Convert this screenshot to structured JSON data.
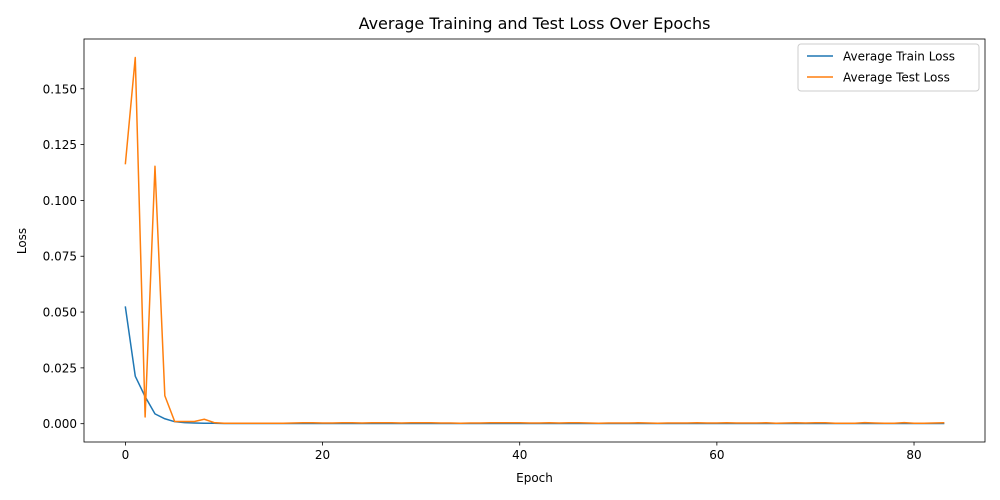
{
  "chart_data": {
    "type": "line",
    "title": "Average Training and Test Loss Over Epochs",
    "xlabel": "Epoch",
    "ylabel": "Loss",
    "xlim": [
      -4.2,
      87.2
    ],
    "ylim": [
      -0.0082,
      0.1723
    ],
    "xticks": [
      0,
      20,
      40,
      60,
      80
    ],
    "yticks": [
      0.0,
      0.025,
      0.05,
      0.075,
      0.1,
      0.125,
      0.15
    ],
    "ytick_labels": [
      "0.000",
      "0.025",
      "0.050",
      "0.075",
      "0.100",
      "0.125",
      "0.150"
    ],
    "grid": false,
    "legend_position": "top-right",
    "series": [
      {
        "name": "Average Train Loss",
        "color": "#1f77b4",
        "x": [
          0,
          1,
          2,
          3,
          4,
          5,
          6,
          7,
          8,
          9,
          10,
          11,
          12,
          13,
          14,
          15,
          16,
          17,
          18,
          19,
          20,
          21,
          22,
          23,
          24,
          25,
          26,
          27,
          28,
          29,
          30,
          31,
          32,
          33,
          34,
          35,
          36,
          37,
          38,
          39,
          40,
          41,
          42,
          43,
          44,
          45,
          46,
          47,
          48,
          49,
          50,
          51,
          52,
          53,
          54,
          55,
          56,
          57,
          58,
          59,
          60,
          61,
          62,
          63,
          64,
          65,
          66,
          67,
          68,
          69,
          70,
          71,
          72,
          73,
          74,
          75,
          76,
          77,
          78,
          79,
          80,
          81,
          82,
          83
        ],
        "values": [
          0.0522,
          0.0213,
          0.0121,
          0.0044,
          0.0022,
          0.0009,
          0.0005,
          0.0003,
          0.0002,
          0.0002,
          0.0001,
          0.0001,
          0.0001,
          0.0001,
          0.0001,
          0.0001,
          0.0001,
          0.0001,
          0.0001,
          0.0001,
          0.0001,
          0.0001,
          0.0001,
          0.0001,
          0.0001,
          0.0001,
          0.0001,
          0.0001,
          0.0001,
          0.0001,
          0.0001,
          0.0001,
          0.0001,
          0.0001,
          0.0001,
          0.0001,
          0.0001,
          0.0001,
          0.0001,
          0.0001,
          0.0001,
          0.0001,
          0.0001,
          0.0001,
          0.0001,
          0.0001,
          0.0001,
          0.0001,
          0.0001,
          0.0001,
          0.0001,
          0.0001,
          0.0001,
          0.0001,
          0.0001,
          0.0001,
          0.0001,
          0.0001,
          0.0001,
          0.0001,
          0.0001,
          0.0001,
          0.0001,
          0.0001,
          0.0001,
          0.0001,
          0.0001,
          0.0001,
          0.0001,
          0.0001,
          0.0001,
          0.0001,
          0.0001,
          0.0001,
          0.0001,
          0.0001,
          0.0001,
          0.0001,
          0.0001,
          0.0001,
          0.0001,
          0.0001,
          0.0001,
          0.0001
        ]
      },
      {
        "name": "Average Test Loss",
        "color": "#ff7f0e",
        "x": [
          0,
          1,
          2,
          3,
          4,
          5,
          6,
          7,
          8,
          9,
          10,
          11,
          12,
          13,
          14,
          15,
          16,
          17,
          18,
          19,
          20,
          21,
          22,
          23,
          24,
          25,
          26,
          27,
          28,
          29,
          30,
          31,
          32,
          33,
          34,
          35,
          36,
          37,
          38,
          39,
          40,
          41,
          42,
          43,
          44,
          45,
          46,
          47,
          48,
          49,
          50,
          51,
          52,
          53,
          54,
          55,
          56,
          57,
          58,
          59,
          60,
          61,
          62,
          63,
          64,
          65,
          66,
          67,
          68,
          69,
          70,
          71,
          72,
          73,
          74,
          75,
          76,
          77,
          78,
          79,
          80,
          81,
          82,
          83
        ],
        "values": [
          0.1165,
          0.164,
          0.003,
          0.1153,
          0.0125,
          0.001,
          0.001,
          0.001,
          0.002,
          0.0005,
          0.0002,
          0.0002,
          0.0002,
          0.0002,
          0.0002,
          0.0002,
          0.0002,
          0.0003,
          0.0004,
          0.0004,
          0.0003,
          0.0003,
          0.0004,
          0.0004,
          0.0003,
          0.0004,
          0.0004,
          0.0004,
          0.0003,
          0.0004,
          0.0004,
          0.0004,
          0.0003,
          0.0003,
          0.0002,
          0.0003,
          0.0003,
          0.0004,
          0.0004,
          0.0004,
          0.0004,
          0.0003,
          0.0003,
          0.0004,
          0.0003,
          0.0004,
          0.0004,
          0.0003,
          0.0002,
          0.0003,
          0.0003,
          0.0003,
          0.0004,
          0.0003,
          0.0002,
          0.0003,
          0.0003,
          0.0003,
          0.0004,
          0.0003,
          0.0003,
          0.0004,
          0.0003,
          0.0003,
          0.0003,
          0.0004,
          0.0002,
          0.0003,
          0.0004,
          0.0003,
          0.0004,
          0.0004,
          0.0002,
          0.0002,
          0.0002,
          0.0005,
          0.0003,
          0.0002,
          0.0002,
          0.0005,
          0.0002,
          0.0002,
          0.0003,
          0.0004
        ]
      }
    ]
  }
}
